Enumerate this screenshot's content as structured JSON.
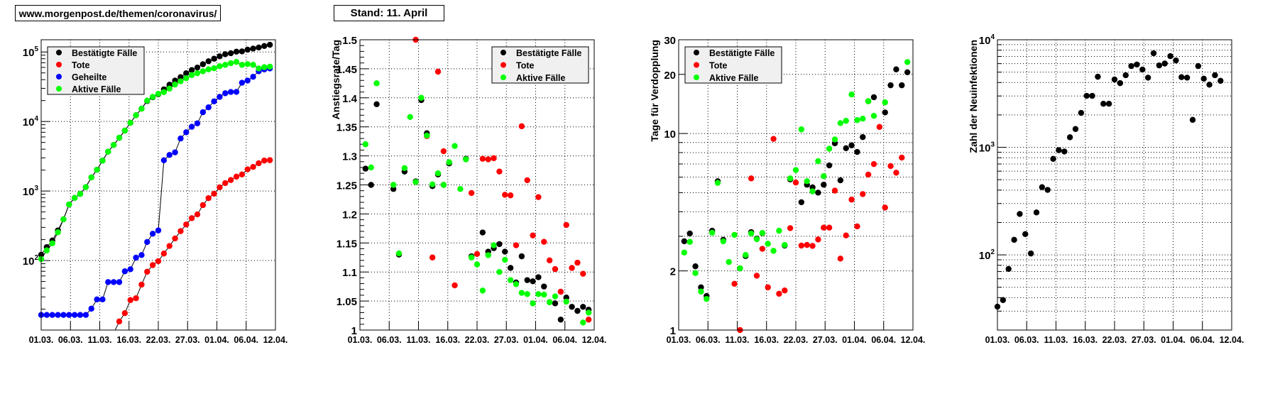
{
  "header": {
    "source_url": "www.morgenpost.de/themen/coronavirus/",
    "stand": "Stand: 11. April"
  },
  "colors": {
    "confirmed": "#000000",
    "deaths": "#ff0000",
    "recovered": "#0000ff",
    "active": "#00ff00"
  },
  "chart_data": [
    {
      "type": "scatter",
      "title": "",
      "xlabel": "",
      "ylabel": "",
      "ylog": true,
      "ylim": [
        10,
        150000
      ],
      "xlim": [
        0,
        42
      ],
      "x_tick_labels": [
        "01.03.",
        "06.03.",
        "11.03.",
        "16.03.",
        "22.03.",
        "27.03.",
        "01.04.",
        "06.04.",
        "12.04."
      ],
      "y_ticks": [
        {
          "value": 100,
          "label": "10^2"
        },
        {
          "value": 1000,
          "label": "10^3"
        },
        {
          "value": 10000,
          "label": "10^4"
        },
        {
          "value": 100000,
          "label": "10^5"
        }
      ],
      "grid": true,
      "grid_minor": false,
      "lines": true,
      "legend": "top-left",
      "series": [
        {
          "name": "Bestätigte Fälle",
          "color": "#000000",
          "values": [
            121,
            156,
            194,
            271,
            392,
            641,
            796,
            910,
            1140,
            1570,
            2020,
            2740,
            3680,
            4600,
            5830,
            7400,
            9580,
            12300,
            15300,
            19700,
            22300,
            24700,
            29000,
            33800,
            38800,
            43500,
            49500,
            55000,
            59700,
            66700,
            73500,
            80000,
            86700,
            92900,
            96000,
            101000,
            102000,
            108000,
            112000,
            116000,
            122000,
            127000
          ]
        },
        {
          "name": "Tote",
          "color": "#ff0000",
          "values": [
            null,
            null,
            null,
            null,
            null,
            null,
            null,
            null,
            null,
            null,
            null,
            null,
            null,
            9,
            13.3,
            17.5,
            27,
            28.7,
            45,
            69,
            86,
            98,
            126,
            162,
            208,
            265,
            330,
            407,
            461,
            627,
            790,
            914,
            1130,
            1300,
            1440,
            1610,
            1730,
            2050,
            2220,
            2510,
            2740,
            2780
          ]
        },
        {
          "name": "Geheilte",
          "color": "#0000ff",
          "values": [
            16.5,
            16.5,
            16.5,
            16.5,
            16.5,
            16.5,
            16.5,
            16.5,
            16.5,
            20.3,
            27.6,
            27.6,
            49,
            49,
            49,
            70,
            75,
            110,
            120,
            185,
            243,
            271,
            2770,
            3300,
            3600,
            5700,
            7000,
            8400,
            9400,
            13600,
            16000,
            19500,
            22600,
            25500,
            26600,
            26700,
            36100,
            38800,
            44000,
            52800,
            56200,
            58000
          ]
        },
        {
          "name": "Aktive Fälle",
          "color": "#00ff00",
          "values": [
            105,
            140,
            177,
            255,
            392,
            641,
            796,
            910,
            1140,
            1570,
            2020,
            2740,
            3680,
            4600,
            5830,
            7400,
            9580,
            12300,
            15300,
            20000,
            22600,
            25000,
            26500,
            29700,
            34000,
            37900,
            42000,
            46600,
            49500,
            52800,
            56200,
            58300,
            62500,
            65300,
            69000,
            72000,
            65300,
            67000,
            65300,
            58000,
            60500,
            61500
          ]
        }
      ]
    },
    {
      "type": "scatter",
      "title": "",
      "xlabel": "",
      "ylabel": "Anstiegsrate/Tag",
      "ylog": false,
      "ylim": [
        1.0,
        1.5
      ],
      "xlim": [
        0,
        42
      ],
      "x_tick_labels": [
        "01.03.",
        "06.03.",
        "11.03.",
        "16.03.",
        "22.03.",
        "27.03.",
        "01.04.",
        "06.04.",
        "12.04."
      ],
      "y_ticks": [
        {
          "value": 1.0,
          "label": "1"
        },
        {
          "value": 1.05,
          "label": "1.05"
        },
        {
          "value": 1.1,
          "label": "1.1"
        },
        {
          "value": 1.15,
          "label": "1.15"
        },
        {
          "value": 1.2,
          "label": "1.2"
        },
        {
          "value": 1.25,
          "label": "1.25"
        },
        {
          "value": 1.3,
          "label": "1.3"
        },
        {
          "value": 1.35,
          "label": "1.35"
        },
        {
          "value": 1.4,
          "label": "1.4"
        },
        {
          "value": 1.45,
          "label": "1.45"
        },
        {
          "value": 1.5,
          "label": "1.5"
        }
      ],
      "grid": true,
      "grid_minor": false,
      "lines": false,
      "legend": "top-right",
      "series": [
        {
          "name": "Bestätigte Fälle",
          "color": "#000000",
          "values": [
            null,
            1.278,
            1.25,
            1.389,
            null,
            null,
            1.243,
            1.13,
            1.273,
            null,
            1.256,
            1.396,
            1.339,
            1.248,
            1.268,
            1.25,
            1.287,
            null,
            null,
            1.295,
            1.127,
            null,
            1.168,
            1.135,
            1.141,
            1.148,
            1.135,
            1.107,
            1.082,
            1.127,
            1.086,
            1.084,
            1.091,
            1.075,
            1.048,
            1.046,
            1.018,
            1.056,
            1.04,
            1.033,
            1.04,
            1.035
          ]
        },
        {
          "name": "Tote",
          "color": "#ff0000",
          "values": [
            null,
            null,
            null,
            null,
            null,
            null,
            null,
            null,
            null,
            null,
            1.5,
            null,
            1.334,
            1.125,
            1.445,
            1.308,
            null,
            1.077,
            null,
            null,
            1.236,
            1.131,
            1.295,
            1.294,
            1.296,
            1.273,
            1.233,
            1.232,
            1.146,
            1.351,
            1.258,
            1.163,
            1.229,
            1.152,
            1.12,
            1.105,
            1.066,
            1.181,
            1.107,
            1.116,
            1.097,
            1.018
          ]
        },
        {
          "name": "Aktive Fälle",
          "color": "#00ff00",
          "values": [
            null,
            1.32,
            1.28,
            1.425,
            null,
            null,
            1.25,
            1.132,
            1.279,
            1.367,
            1.255,
            1.4,
            1.335,
            1.251,
            1.27,
            1.25,
            1.289,
            1.317,
            1.243,
            1.294,
            1.125,
            1.113,
            1.068,
            1.129,
            1.146,
            1.1,
            1.121,
            1.086,
            1.079,
            1.064,
            1.062,
            1.046,
            1.062,
            1.061,
            1.048,
            1.058,
            null,
            1.049,
            null,
            null,
            1.013,
            1.03
          ]
        }
      ]
    },
    {
      "type": "scatter",
      "title": "",
      "xlabel": "",
      "ylabel": "Tage für Verdopplung",
      "ylog": true,
      "ylim": [
        1,
        30
      ],
      "xlim": [
        0,
        42
      ],
      "x_tick_labels": [
        "01.03.",
        "06.03.",
        "11.03.",
        "16.03.",
        "22.03.",
        "27.03.",
        "01.04.",
        "06.04.",
        "12.04."
      ],
      "y_ticks": [
        {
          "value": 1,
          "label": "1"
        },
        {
          "value": 2,
          "label": "2"
        },
        {
          "value": 10,
          "label": "10"
        },
        {
          "value": 20,
          "label": "20"
        },
        {
          "value": 30,
          "label": "30"
        }
      ],
      "grid": true,
      "grid_minor": true,
      "lines": false,
      "legend": "top-left",
      "series": [
        {
          "name": "Bestätigte Fälle",
          "color": "#000000",
          "values": [
            null,
            2.83,
            3.1,
            2.11,
            1.65,
            1.49,
            3.2,
            5.72,
            2.88,
            null,
            null,
            2.06,
            2.38,
            3.15,
            2.92,
            3.11,
            null,
            null,
            null,
            2.69,
            5.84,
            null,
            4.47,
            5.49,
            5.32,
            5.0,
            5.49,
            6.88,
            8.92,
            5.78,
            8.42,
            8.71,
            8.06,
            9.59,
            14.6,
            15.3,
            null,
            12.8,
            17.6,
            21.2,
            17.6,
            20.5
          ]
        },
        {
          "name": "Tote",
          "color": "#ff0000",
          "values": [
            null,
            null,
            null,
            null,
            null,
            null,
            null,
            null,
            null,
            null,
            1.72,
            1.0,
            null,
            5.91,
            1.89,
            2.59,
            1.65,
            9.39,
            1.53,
            1.59,
            3.3,
            5.63,
            2.69,
            2.71,
            2.68,
            2.89,
            3.32,
            3.32,
            5.12,
            2.31,
            3.03,
            4.61,
            3.37,
            4.92,
            6.18,
            6.99,
            10.8,
            4.2,
            6.83,
            6.32,
            7.54,
            null
          ]
        },
        {
          "name": "Aktive Fälle",
          "color": "#00ff00",
          "values": [
            null,
            2.48,
            2.81,
            1.95,
            1.57,
            1.44,
            3.13,
            5.61,
            2.83,
            2.22,
            3.05,
            2.06,
            2.41,
            3.1,
            2.9,
            3.12,
            2.75,
            2.53,
            3.2,
            2.71,
            5.91,
            6.52,
            10.5,
            5.72,
            5.08,
            7.23,
            6.07,
            8.37,
            9.33,
            11.3,
            11.6,
            15.8,
            11.7,
            11.9,
            14.6,
            12.3,
            null,
            14.4,
            null,
            null,
            null,
            23.1
          ]
        }
      ]
    },
    {
      "type": "scatter",
      "title": "",
      "xlabel": "",
      "ylabel": "Zahl der Neuinfektionen",
      "ylog": true,
      "ylim": [
        20,
        10000
      ],
      "xlim": [
        0,
        42
      ],
      "x_tick_labels": [
        "01.03.",
        "06.03.",
        "11.03.",
        "16.03.",
        "22.03.",
        "27.03.",
        "01.04.",
        "06.04.",
        "12.04."
      ],
      "y_ticks": [
        {
          "value": 100,
          "label": "10^2"
        },
        {
          "value": 1000,
          "label": "10^3"
        },
        {
          "value": 10000,
          "label": "10^4"
        }
      ],
      "grid": true,
      "grid_minor": true,
      "lines": false,
      "legend": "none",
      "series": [
        {
          "name": "Neuinfektionen",
          "color": "#000000",
          "values": [
            33,
            38,
            74,
            138,
            240,
            156,
            103,
            248,
            426,
            402,
            781,
            940,
            914,
            1240,
            1480,
            2090,
            3010,
            3010,
            4530,
            2540,
            2540,
            4270,
            3950,
            4680,
            5690,
            5880,
            5280,
            4440,
            7490,
            5770,
            6010,
            7040,
            6420,
            4490,
            4440,
            1800,
            5690,
            4350,
            3820,
            4680,
            4150
          ]
        }
      ]
    }
  ]
}
